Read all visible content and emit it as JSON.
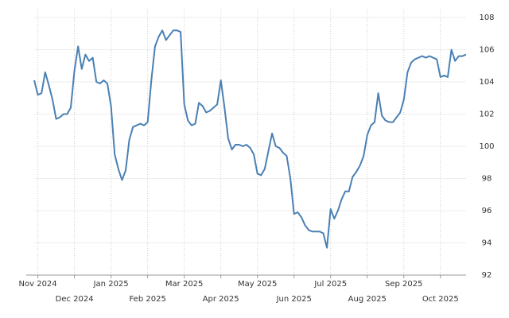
{
  "chart_data": {
    "type": "line",
    "categories": [
      null,
      "Nov 2024",
      null,
      null,
      null,
      null,
      null,
      null,
      null,
      null,
      null,
      "Dec 2024",
      null,
      null,
      null,
      null,
      null,
      null,
      null,
      null,
      null,
      "Jan 2025",
      null,
      null,
      null,
      null,
      null,
      null,
      null,
      null,
      null,
      "Feb 2025",
      null,
      null,
      null,
      null,
      null,
      null,
      null,
      null,
      null,
      "Mar 2025",
      null,
      null,
      null,
      null,
      null,
      null,
      null,
      null,
      null,
      "Apr 2025",
      null,
      null,
      null,
      null,
      null,
      null,
      null,
      null,
      null,
      "May 2025",
      null,
      null,
      null,
      null,
      null,
      null,
      null,
      null,
      null,
      "Jun 2025",
      null,
      null,
      null,
      null,
      null,
      null,
      null,
      null,
      null,
      "Jul 2025",
      null,
      null,
      null,
      null,
      null,
      null,
      null,
      null,
      null,
      "Aug 2025",
      null,
      null,
      null,
      null,
      null,
      null,
      null,
      null,
      null,
      "Sep 2025",
      null,
      null,
      null,
      null,
      null,
      null,
      null,
      null,
      null,
      "Oct 2025",
      null,
      null,
      null,
      null,
      null,
      null,
      null
    ],
    "series": [
      {
        "color": "#4a80b4",
        "values": [
          104.1,
          103.2,
          103.3,
          104.6,
          103.8,
          102.9,
          101.7,
          101.8,
          102.0,
          102.0,
          102.4,
          104.7,
          106.2,
          104.8,
          105.7,
          105.3,
          105.5,
          104.0,
          103.9,
          104.1,
          103.9,
          102.5,
          99.5,
          98.6,
          97.9,
          98.5,
          100.4,
          101.2,
          101.3,
          101.4,
          101.3,
          101.5,
          104.1,
          106.2,
          106.8,
          107.2,
          106.6,
          106.9,
          107.2,
          107.2,
          107.1,
          102.6,
          101.6,
          101.3,
          101.4,
          102.7,
          102.5,
          102.1,
          102.2,
          102.4,
          102.6,
          104.1,
          102.4,
          100.5,
          99.8,
          100.1,
          100.1,
          100.0,
          100.1,
          99.9,
          99.5,
          98.3,
          98.2,
          98.6,
          99.7,
          100.8,
          100.0,
          99.9,
          99.6,
          99.4,
          98.0,
          95.8,
          95.9,
          95.6,
          95.1,
          94.8,
          94.7,
          94.7,
          94.7,
          94.6,
          93.7,
          96.1,
          95.5,
          96.0,
          96.7,
          97.2,
          97.2,
          98.1,
          98.4,
          98.8,
          99.4,
          100.7,
          101.3,
          101.5,
          103.3,
          101.9,
          101.6,
          101.5,
          101.5,
          101.8,
          102.1,
          102.9,
          104.6,
          105.2,
          105.4,
          105.5,
          105.6,
          105.5,
          105.6,
          105.5,
          105.4,
          104.3,
          104.4,
          104.3,
          106.0,
          105.3,
          105.6,
          105.6,
          105.7
        ]
      }
    ],
    "ylim": [
      92,
      108
    ],
    "yticks": [
      92,
      94,
      96,
      98,
      100,
      102,
      104,
      106,
      108
    ],
    "y_axis_side": "right",
    "grid": true
  }
}
